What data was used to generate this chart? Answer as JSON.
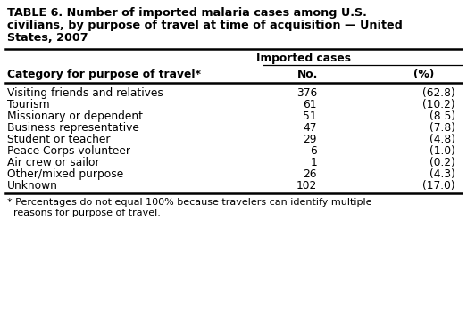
{
  "title_line1": "TABLE 6. Number of imported malaria cases among U.S.",
  "title_line2": "civilians, by purpose of travel at time of acquisition — United",
  "title_line3": "States, 2007",
  "col_header_group": "Imported cases",
  "col_headers": [
    "Category for purpose of travel*",
    "No.",
    "(%)"
  ],
  "rows": [
    [
      "Visiting friends and relatives",
      "376",
      "(62.8)"
    ],
    [
      "Tourism",
      "61",
      "(10.2)"
    ],
    [
      "Missionary or dependent",
      "51",
      "(8.5)"
    ],
    [
      "Business representative",
      "47",
      "(7.8)"
    ],
    [
      "Student or teacher",
      "29",
      "(4.8)"
    ],
    [
      "Peace Corps volunteer",
      "6",
      "(1.0)"
    ],
    [
      "Air crew or sailor",
      "1",
      "(0.2)"
    ],
    [
      "Other/mixed purpose",
      "26",
      "(4.3)"
    ],
    [
      "Unknown",
      "102",
      "(17.0)"
    ]
  ],
  "footnote_line1": "* Percentages do not equal 100% because travelers can identify multiple",
  "footnote_line2": "  reasons for purpose of travel.",
  "bg_color": "#ffffff",
  "text_color": "#000000",
  "title_fontsize": 9.2,
  "header_fontsize": 8.8,
  "data_fontsize": 8.8,
  "footnote_fontsize": 8.0,
  "fig_width": 5.23,
  "fig_height": 3.49,
  "dpi": 100
}
